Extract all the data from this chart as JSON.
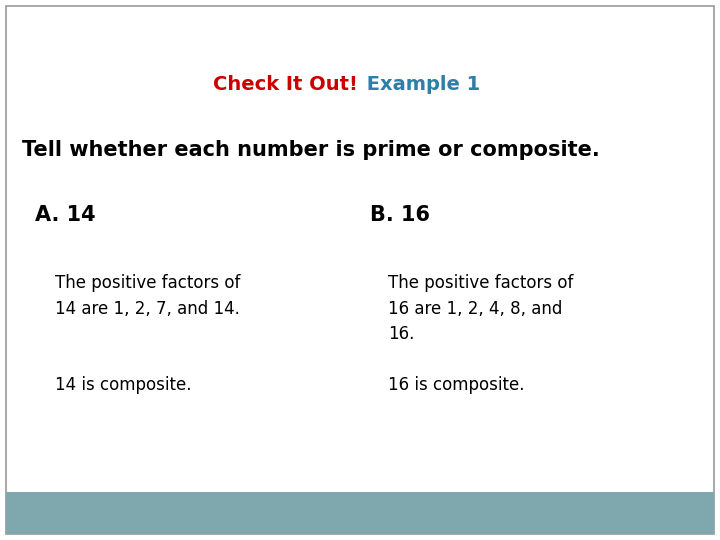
{
  "title_part1": "Check It Out!",
  "title_part2": " Example 1",
  "title_color1": "#cc0000",
  "title_color2": "#2e7fa8",
  "subtitle": "Tell whether each number is prime or composite.",
  "subtitle_color": "#000000",
  "label_A": "A. 14",
  "label_B": "B. 16",
  "label_color": "#000000",
  "text_A1": "The positive factors of\n14 are 1, 2, 7, and 14.",
  "text_B1": "The positive factors of\n16 are 1, 2, 4, 8, and\n16.",
  "text_A2": "14 is composite.",
  "text_B2": "16 is composite.",
  "body_text_color": "#000000",
  "bg_color": "#ffffff",
  "footer_color": "#7fa8ae",
  "border_color": "#999999",
  "title_fontsize": 14,
  "subtitle_fontsize": 15,
  "label_fontsize": 15,
  "body_fontsize": 12
}
